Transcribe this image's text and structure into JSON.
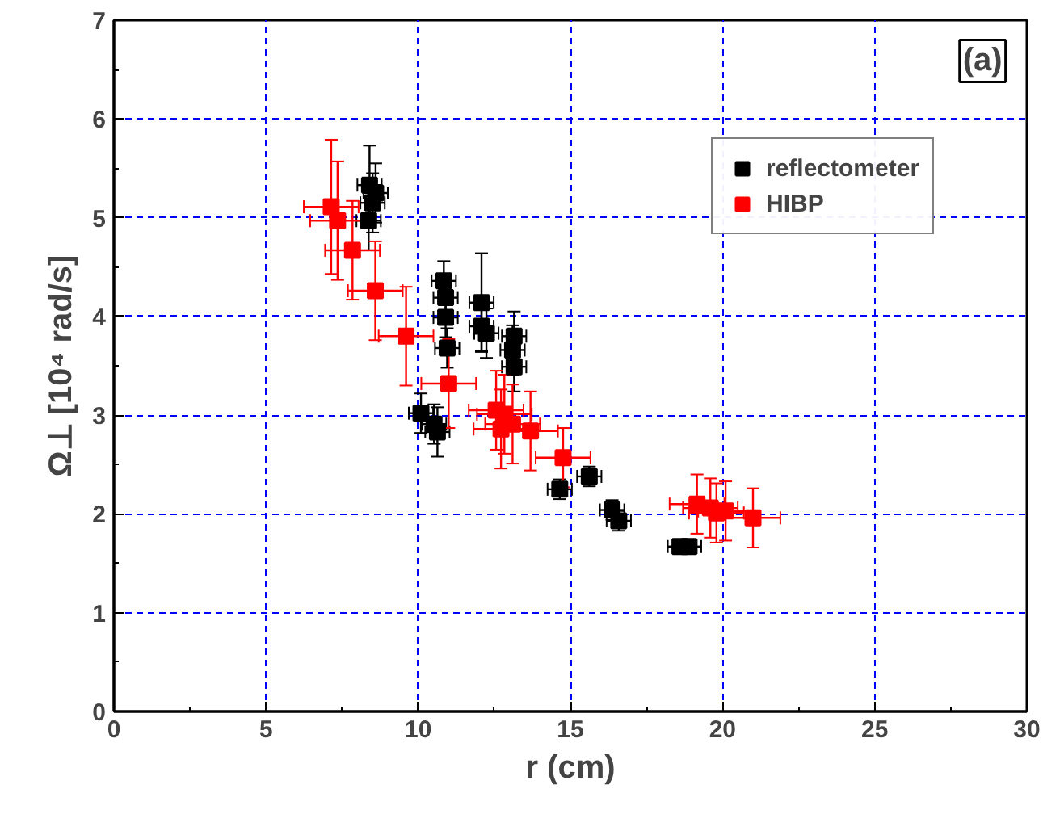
{
  "chart_data": {
    "type": "scatter",
    "xlabel": "r (cm)",
    "ylabel": "Ω⊥ [10⁴ rad/s]",
    "xlim": [
      0,
      30
    ],
    "ylim": [
      0,
      7
    ],
    "xticks": [
      0,
      5,
      10,
      15,
      20,
      25,
      30
    ],
    "yticks": [
      0,
      1,
      2,
      3,
      4,
      5,
      6,
      7
    ],
    "grid": true,
    "legend": "top right",
    "marker": "square",
    "annotations": [
      "(a)"
    ],
    "series": [
      {
        "name": "reflectometer",
        "color": "#000000",
        "x": [
          8.4,
          8.6,
          8.5,
          8.37,
          10.84,
          10.9,
          10.9,
          10.95,
          12.08,
          12.08,
          12.24,
          13.15,
          13.1,
          13.15,
          10.09,
          10.52,
          10.63,
          14.65,
          15.62,
          16.37,
          16.59,
          18.6,
          18.9
        ],
        "values": [
          5.33,
          5.25,
          5.15,
          4.97,
          4.36,
          4.19,
          3.99,
          3.68,
          4.14,
          3.9,
          3.83,
          3.8,
          3.66,
          3.49,
          3.02,
          2.91,
          2.83,
          2.25,
          2.38,
          2.04,
          1.93,
          1.67,
          1.67
        ],
        "errors": [
          0.4,
          0.3,
          0.3,
          0.3,
          0.2,
          0.2,
          0.2,
          0.2,
          0.5,
          0.25,
          0.25,
          0.25,
          0.25,
          0.25,
          0.2,
          0.2,
          0.25,
          0.1,
          0.1,
          0.1,
          0.1,
          0.05,
          0.05
        ],
        "xerrors": [
          0.4,
          0.4,
          0.4,
          0.4,
          0.4,
          0.4,
          0.4,
          0.4,
          0.4,
          0.4,
          0.4,
          0.4,
          0.4,
          0.4,
          0.4,
          0.4,
          0.4,
          0.4,
          0.4,
          0.4,
          0.4,
          0.4,
          0.4
        ]
      },
      {
        "name": "HIBP",
        "color": "#ff0000",
        "x": [
          7.14,
          7.35,
          7.84,
          8.59,
          9.6,
          11.0,
          12.56,
          12.83,
          12.72,
          13.1,
          13.69,
          14.76,
          19.16,
          19.6,
          19.8,
          20.1,
          21.0
        ],
        "values": [
          5.11,
          4.97,
          4.67,
          4.26,
          3.8,
          3.32,
          3.05,
          3.01,
          2.86,
          2.91,
          2.84,
          2.57,
          2.1,
          2.06,
          2.01,
          2.03,
          1.96
        ],
        "errors": [
          0.68,
          0.6,
          0.5,
          0.5,
          0.5,
          0.45,
          0.4,
          0.4,
          0.4,
          0.4,
          0.4,
          0.3,
          0.3,
          0.3,
          0.3,
          0.3,
          0.3
        ],
        "xerrors": [
          0.9,
          0.9,
          0.9,
          0.9,
          0.9,
          0.9,
          0.9,
          0.9,
          0.9,
          0.9,
          0.9,
          0.9,
          0.9,
          0.9,
          0.9,
          0.9,
          0.9
        ]
      }
    ]
  }
}
